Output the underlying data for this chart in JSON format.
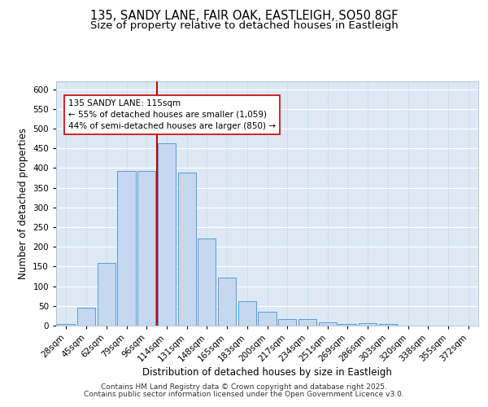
{
  "title_line1": "135, SANDY LANE, FAIR OAK, EASTLEIGH, SO50 8GF",
  "title_line2": "Size of property relative to detached houses in Eastleigh",
  "xlabel": "Distribution of detached houses by size in Eastleigh",
  "ylabel": "Number of detached properties",
  "bar_labels": [
    "28sqm",
    "45sqm",
    "62sqm",
    "79sqm",
    "96sqm",
    "114sqm",
    "131sqm",
    "148sqm",
    "165sqm",
    "183sqm",
    "200sqm",
    "217sqm",
    "234sqm",
    "251sqm",
    "269sqm",
    "286sqm",
    "303sqm",
    "320sqm",
    "338sqm",
    "355sqm",
    "372sqm"
  ],
  "bar_values": [
    4,
    45,
    160,
    393,
    393,
    462,
    388,
    221,
    122,
    62,
    35,
    16,
    16,
    9,
    5,
    6,
    5,
    1,
    1,
    0,
    0
  ],
  "bar_color": "#c5d8f0",
  "bar_edge_color": "#5b9bd5",
  "vline_color": "#cc0000",
  "vline_position": 4.5,
  "annotation_title": "135 SANDY LANE: 115sqm",
  "annotation_line1": "← 55% of detached houses are smaller (1,059)",
  "annotation_line2": "44% of semi-detached houses are larger (850) →",
  "annotation_box_color": "#ffffff",
  "annotation_box_edge": "#cc0000",
  "ylim_max": 620,
  "yticks": [
    0,
    50,
    100,
    150,
    200,
    250,
    300,
    350,
    400,
    450,
    500,
    550,
    600
  ],
  "plot_bg_color": "#dce9f5",
  "grid_color": "#ffffff",
  "footer_line1": "Contains HM Land Registry data © Crown copyright and database right 2025.",
  "footer_line2": "Contains public sector information licensed under the Open Government Licence v3.0.",
  "title_fontsize": 10.5,
  "subtitle_fontsize": 9.5,
  "axis_label_fontsize": 8.5,
  "tick_fontsize": 7.5,
  "footer_fontsize": 6.5,
  "annot_fontsize": 7.5
}
